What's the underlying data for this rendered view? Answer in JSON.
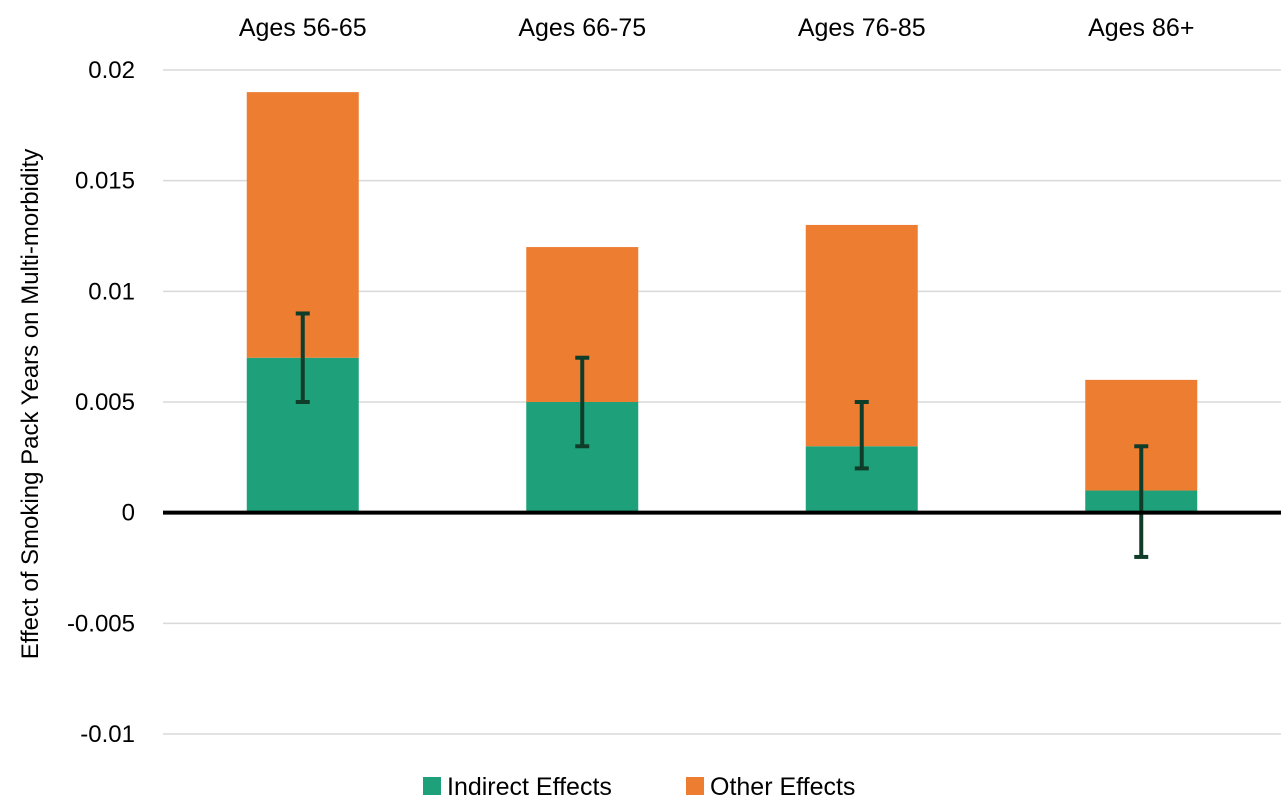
{
  "chart_data": {
    "type": "bar",
    "stacked": true,
    "title": "",
    "xlabel": "",
    "ylabel": "Effect of Smoking Pack Years on Multi-morbidity",
    "ylim": [
      -0.01,
      0.02
    ],
    "yticks": [
      {
        "value": 0.02,
        "label": "0.02"
      },
      {
        "value": 0.015,
        "label": "0.015"
      },
      {
        "value": 0.01,
        "label": "0.01"
      },
      {
        "value": 0.005,
        "label": "0.005"
      },
      {
        "value": 0,
        "label": "0"
      },
      {
        "value": -0.005,
        "label": "-0.005"
      },
      {
        "value": -0.01,
        "label": "-0.01"
      }
    ],
    "categories": [
      "Ages 56-65",
      "Ages 66-75",
      "Ages 76-85",
      "Ages 86+"
    ],
    "category_axis_position": "top",
    "grid": true,
    "legend_position": "bottom",
    "series": [
      {
        "name": "Indirect Effects",
        "color": "#1ea17a",
        "values": [
          0.007,
          0.005,
          0.003,
          0.001
        ]
      },
      {
        "name": "Other Effects",
        "color": "#ed7d31",
        "values": [
          0.012,
          0.007,
          0.01,
          0.005
        ]
      }
    ],
    "error_bars": {
      "series": "Indirect Effects",
      "color": "#0f3d2a",
      "lower": [
        0.005,
        0.003,
        0.002,
        -0.002
      ],
      "upper": [
        0.009,
        0.007,
        0.005,
        0.003
      ]
    }
  }
}
